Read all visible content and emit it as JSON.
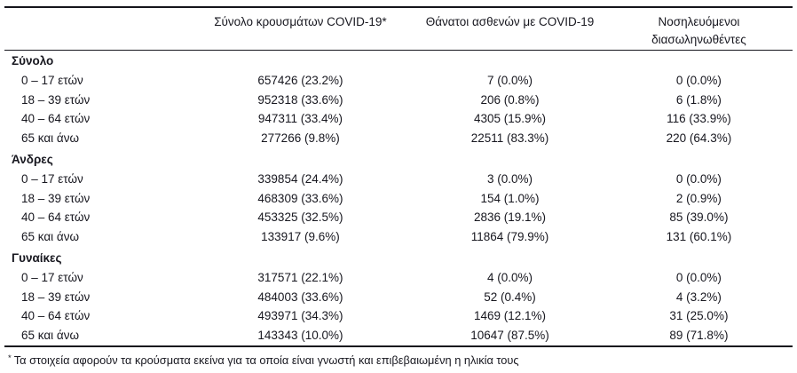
{
  "table": {
    "headers": {
      "cases": "Σύνολο κρουσμάτων COVID-19*",
      "deaths": "Θάνατοι ασθενών με COVID-19",
      "intubated": "Νοσηλευόμενοι διασωληνωθέντες"
    },
    "sections": [
      {
        "label": "Σύνολο",
        "rows": [
          {
            "label": "0 – 17 ετών",
            "cases": "657426 (23.2%)",
            "deaths": "7 (0.0%)",
            "intubated": "0 (0.0%)"
          },
          {
            "label": "18 – 39 ετών",
            "cases": "952318 (33.6%)",
            "deaths": "206 (0.8%)",
            "intubated": "6 (1.8%)"
          },
          {
            "label": "40 – 64 ετών",
            "cases": "947311 (33.4%)",
            "deaths": "4305 (15.9%)",
            "intubated": "116 (33.9%)"
          },
          {
            "label": "65 και άνω",
            "cases": "277266 (9.8%)",
            "deaths": "22511 (83.3%)",
            "intubated": "220 (64.3%)"
          }
        ]
      },
      {
        "label": "Άνδρες",
        "rows": [
          {
            "label": "0 – 17 ετών",
            "cases": "339854 (24.4%)",
            "deaths": "3 (0.0%)",
            "intubated": "0 (0.0%)"
          },
          {
            "label": "18 – 39 ετών",
            "cases": "468309 (33.6%)",
            "deaths": "154 (1.0%)",
            "intubated": "2 (0.9%)"
          },
          {
            "label": "40 – 64 ετών",
            "cases": "453325 (32.5%)",
            "deaths": "2836 (19.1%)",
            "intubated": "85 (39.0%)"
          },
          {
            "label": "65 και άνω",
            "cases": "133917 (9.6%)",
            "deaths": "11864 (79.9%)",
            "intubated": "131 (60.1%)"
          }
        ]
      },
      {
        "label": "Γυναίκες",
        "rows": [
          {
            "label": "0 – 17 ετών",
            "cases": "317571 (22.1%)",
            "deaths": "4 (0.0%)",
            "intubated": "0 (0.0%)"
          },
          {
            "label": "18 – 39 ετών",
            "cases": "484003 (33.6%)",
            "deaths": "52 (0.4%)",
            "intubated": "4 (3.2%)"
          },
          {
            "label": "40 – 64 ετών",
            "cases": "493971 (34.3%)",
            "deaths": "1469 (12.1%)",
            "intubated": "31 (25.0%)"
          },
          {
            "label": "65 και άνω",
            "cases": "143343 (10.0%)",
            "deaths": "10647 (87.5%)",
            "intubated": "89 (71.8%)"
          }
        ]
      }
    ],
    "footnote": {
      "marker": "*",
      "text": "Τα στοιχεία αφορούν τα κρούσματα εκείνα για τα οποία είναι γνωστή και επιβεβαιωμένη η ηλικία τους"
    }
  }
}
